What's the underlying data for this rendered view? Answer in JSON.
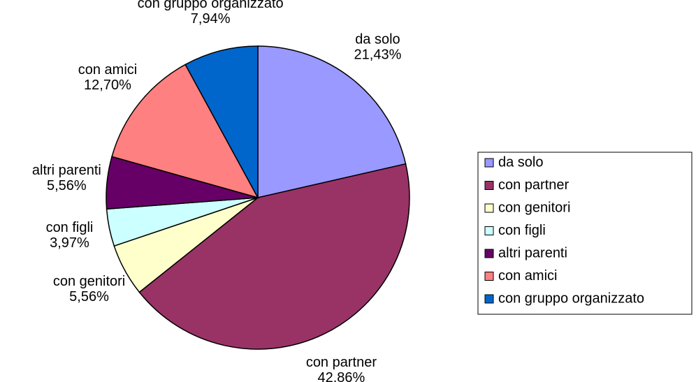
{
  "chart_data": {
    "type": "pie",
    "categories": [
      "da solo",
      "con partner",
      "con genitori",
      "con figli",
      "altri parenti",
      "con amici",
      "con gruppo organizzato"
    ],
    "values": [
      21.43,
      42.86,
      5.56,
      3.97,
      5.56,
      12.7,
      7.94
    ],
    "value_labels": [
      "21,43%",
      "42,86%",
      "5,56%",
      "3,97%",
      "5,56%",
      "12,70%",
      "7,94%"
    ],
    "colors": [
      "#9999ff",
      "#993366",
      "#ffffcc",
      "#ccffff",
      "#660066",
      "#ff8080",
      "#0066cc"
    ],
    "legend": "right"
  }
}
